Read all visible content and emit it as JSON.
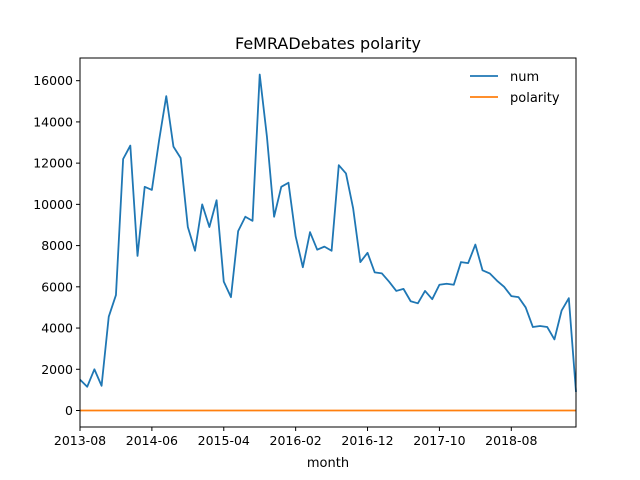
{
  "chart_data": {
    "type": "line",
    "title": "FeMRADebates polarity",
    "xlabel": "month",
    "ylabel": "",
    "ylim": [
      -800,
      17100
    ],
    "x_tick_labels": [
      "2013-08",
      "2014-06",
      "2015-04",
      "2016-02",
      "2016-12",
      "2017-10",
      "2018-08"
    ],
    "y_ticks": [
      0,
      2000,
      4000,
      6000,
      8000,
      10000,
      12000,
      14000,
      16000
    ],
    "y_tick_labels": [
      "0",
      "2000",
      "4000",
      "6000",
      "8000",
      "10000",
      "12000",
      "14000",
      "16000"
    ],
    "legend_position": "top-right",
    "grid": false,
    "x": [
      "2013-08",
      "2013-09",
      "2013-10",
      "2013-11",
      "2013-12",
      "2014-01",
      "2014-02",
      "2014-03",
      "2014-04",
      "2014-05",
      "2014-06",
      "2014-07",
      "2014-08",
      "2014-09",
      "2014-10",
      "2014-11",
      "2014-12",
      "2015-01",
      "2015-02",
      "2015-03",
      "2015-04",
      "2015-05",
      "2015-06",
      "2015-07",
      "2015-08",
      "2015-09",
      "2015-10",
      "2015-11",
      "2015-12",
      "2016-01",
      "2016-02",
      "2016-03",
      "2016-04",
      "2016-05",
      "2016-06",
      "2016-07",
      "2016-08",
      "2016-09",
      "2016-10",
      "2016-11",
      "2016-12",
      "2017-01",
      "2017-02",
      "2017-03",
      "2017-04",
      "2017-05",
      "2017-06",
      "2017-07",
      "2017-08",
      "2017-09",
      "2017-10",
      "2017-11",
      "2017-12",
      "2018-01",
      "2018-02",
      "2018-03",
      "2018-04",
      "2018-05",
      "2018-06",
      "2018-07",
      "2018-08",
      "2018-09",
      "2018-10",
      "2018-11",
      "2018-12",
      "2019-01",
      "2019-02",
      "2019-03",
      "2019-04",
      "2019-05"
    ],
    "series": [
      {
        "name": "num",
        "color": "#1f77b4",
        "values": [
          1500,
          1150,
          2000,
          1200,
          4550,
          5600,
          12200,
          12850,
          7500,
          10850,
          10700,
          13100,
          15250,
          12800,
          12250,
          8900,
          7750,
          10000,
          8900,
          10200,
          6250,
          5500,
          8700,
          9400,
          9200,
          16300,
          13300,
          9400,
          10850,
          11050,
          8450,
          6950,
          8650,
          7800,
          7950,
          7750,
          11900,
          11500,
          9800,
          7200,
          7650,
          6700,
          6650,
          6250,
          5800,
          5900,
          5300,
          5200,
          5800,
          5400,
          6100,
          6150,
          6100,
          7200,
          7150,
          8050,
          6800,
          6650,
          6300,
          6000,
          5550,
          5500,
          5000,
          4050,
          4100,
          4050,
          3450,
          4850,
          5450,
          900
        ]
      },
      {
        "name": "polarity",
        "color": "#ff7f0e",
        "values": [
          0,
          0,
          0,
          0,
          0,
          0,
          0,
          0,
          0,
          0,
          0,
          0,
          0,
          0,
          0,
          0,
          0,
          0,
          0,
          0,
          0,
          0,
          0,
          0,
          0,
          0,
          0,
          0,
          0,
          0,
          0,
          0,
          0,
          0,
          0,
          0,
          0,
          0,
          0,
          0,
          0,
          0,
          0,
          0,
          0,
          0,
          0,
          0,
          0,
          0,
          0,
          0,
          0,
          0,
          0,
          0,
          0,
          0,
          0,
          0,
          0,
          0,
          0,
          0,
          0,
          0,
          0,
          0,
          0,
          0
        ]
      }
    ]
  }
}
